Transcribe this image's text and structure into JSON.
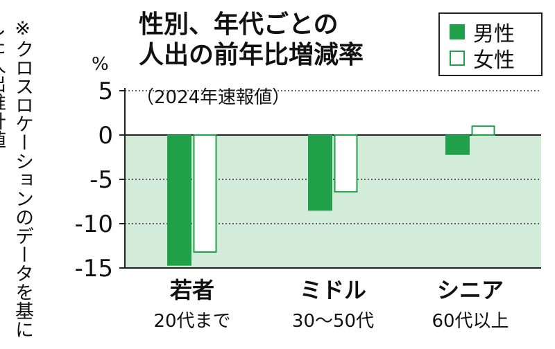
{
  "note": "※クロスロケーションのデータを基にした人出推計値",
  "title": {
    "line1": "性別、年代ごとの",
    "line2": "人出の前年比増減率"
  },
  "subtitle": "（2024年速報値）",
  "unit": "%",
  "colors": {
    "male": "#1fa049",
    "plot_bg": "#d3ecd9",
    "axis": "#222222",
    "grid": "#333333"
  },
  "chart_data": {
    "type": "bar",
    "categories": [
      {
        "name": "若者",
        "sub": "20代まで"
      },
      {
        "name": "ミドル",
        "sub": "30〜50代"
      },
      {
        "name": "シニア",
        "sub": "60代以上"
      }
    ],
    "series": [
      {
        "name": "男性",
        "values": [
          -14.7,
          -8.5,
          -2.2
        ]
      },
      {
        "name": "女性",
        "values": [
          -13.2,
          -6.4,
          1.0
        ]
      }
    ],
    "yticks": [
      "5",
      "0",
      "-5",
      "-10",
      "-15"
    ],
    "ylim": [
      -15,
      5
    ],
    "legend_position": "top-right",
    "grid": true
  }
}
